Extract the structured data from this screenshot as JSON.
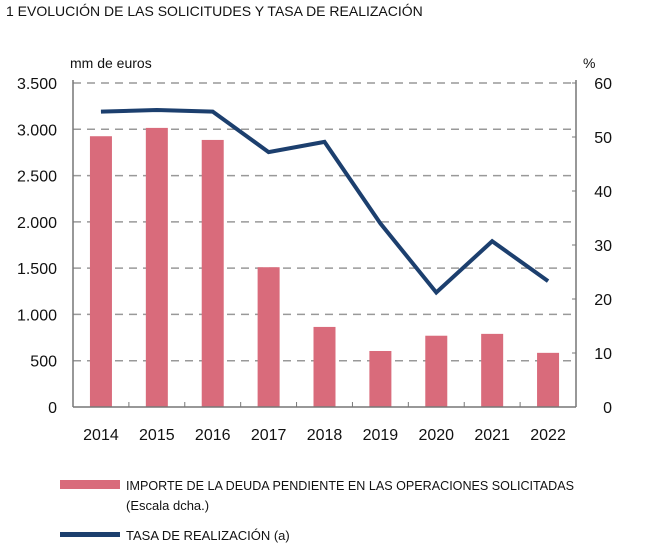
{
  "chart_data": {
    "type": "bar+line",
    "title": "1  EVOLUCIÓN DE LAS SOLICITUDES Y TASA DE REALIZACIÓN",
    "left_unit": "mm de euros",
    "right_unit": "%",
    "categories": [
      "2014",
      "2015",
      "2016",
      "2017",
      "2018",
      "2019",
      "2020",
      "2021",
      "2022"
    ],
    "left_axis": {
      "range": [
        0,
        3500
      ],
      "ticks": [
        0,
        500,
        1000,
        1500,
        2000,
        2500,
        3000,
        3500
      ],
      "tick_labels": [
        "0",
        "500",
        "1.000",
        "1.500",
        "2.000",
        "2.500",
        "3.000",
        "3.500"
      ]
    },
    "right_axis": {
      "range": [
        0,
        60
      ],
      "ticks": [
        0,
        10,
        20,
        30,
        40,
        50,
        60
      ],
      "tick_labels": [
        "0",
        "10",
        "20",
        "30",
        "40",
        "50",
        "60"
      ]
    },
    "grid": "dashed horizontal",
    "legend_placement": "bottom",
    "series": [
      {
        "name": "IMPORTE DE LA DEUDA PENDIENTE EN LAS OPERACIONES SOLICITADAS",
        "name_line2": "(Escala dcha.)",
        "type": "bar",
        "axis": "left",
        "color": "#d96b7b",
        "values": [
          2925,
          3015,
          2885,
          1510,
          865,
          605,
          770,
          790,
          585
        ]
      },
      {
        "name": "TASA DE REALIZACIÓN (a)",
        "type": "line",
        "axis": "right",
        "color": "#1c3f6e",
        "values": [
          54.7,
          55.0,
          54.7,
          47.2,
          49.1,
          34.0,
          21.2,
          30.7,
          23.3
        ]
      }
    ]
  }
}
